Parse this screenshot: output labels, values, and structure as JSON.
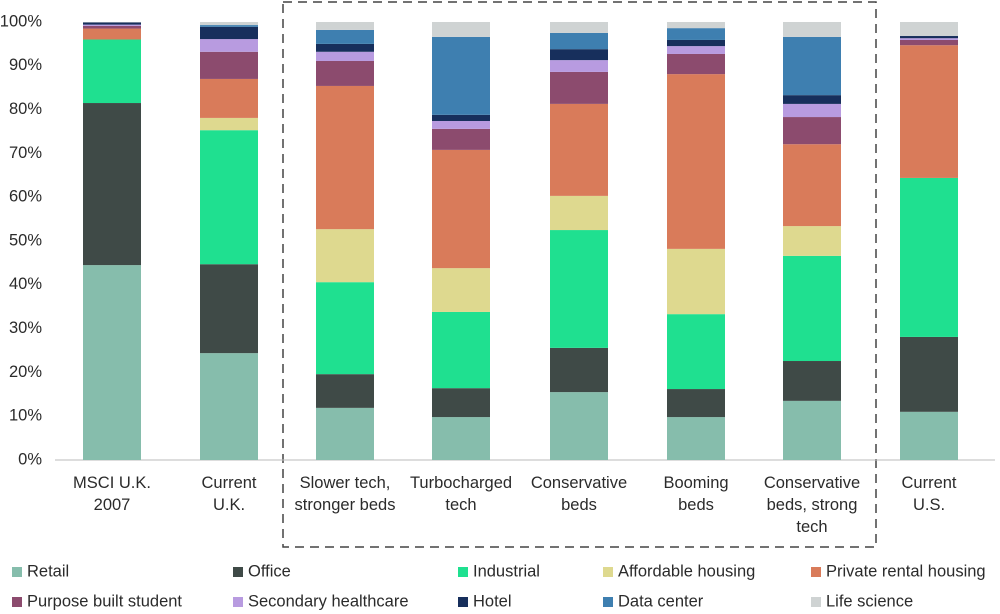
{
  "chart_data": {
    "type": "stacked_bar",
    "categories": [
      "MSCI U.K.\n2007",
      "Current\nU.K.",
      "Slower tech,\nstronger beds",
      "Turbocharged\ntech",
      "Conservative\nbeds",
      "Booming\nbeds",
      "Conservative\nbeds, strong\ntech",
      "Current\nU.S."
    ],
    "series": [
      {
        "name": "Retail",
        "color": "#86bdac",
        "values": [
          44.5,
          24.4,
          11.9,
          9.8,
          15.5,
          9.8,
          13.5,
          11.0
        ]
      },
      {
        "name": "Office",
        "color": "#3f4a47",
        "values": [
          37.0,
          20.3,
          7.7,
          6.6,
          10.1,
          6.4,
          9.1,
          17.1
        ]
      },
      {
        "name": "Industrial",
        "color": "#1fe090",
        "values": [
          14.5,
          30.6,
          21.0,
          17.4,
          26.9,
          17.1,
          24.0,
          36.3
        ]
      },
      {
        "name": "Affordable housing",
        "color": "#ded98f",
        "values": [
          0,
          2.8,
          12.1,
          10.0,
          7.8,
          14.9,
          6.8,
          0
        ]
      },
      {
        "name": "Private rental housing",
        "color": "#d97b5a",
        "values": [
          2.5,
          8.9,
          32.7,
          27.0,
          21.0,
          39.9,
          18.7,
          30.3
        ]
      },
      {
        "name": "Purpose built student",
        "color": "#8c4b6e",
        "values": [
          0.6,
          6.2,
          5.7,
          4.8,
          7.3,
          4.6,
          6.2,
          1.2
        ]
      },
      {
        "name": "Secondary healthcare",
        "color": "#b89be0",
        "values": [
          0.3,
          2.9,
          2.1,
          1.8,
          2.7,
          1.8,
          3.0,
          0.4
        ]
      },
      {
        "name": "Hotel",
        "color": "#172f5c",
        "values": [
          0.5,
          2.8,
          1.8,
          1.4,
          2.5,
          1.4,
          2.0,
          0.5
        ]
      },
      {
        "name": "Data center",
        "color": "#3e7fb0",
        "values": [
          0,
          0.4,
          3.2,
          17.8,
          3.7,
          2.7,
          13.3,
          0
        ]
      },
      {
        "name": "Life science",
        "color": "#cfd3d3",
        "values": [
          0.1,
          0.7,
          1.8,
          3.4,
          2.5,
          1.4,
          3.4,
          3.2
        ]
      }
    ],
    "ylim": [
      0,
      100
    ],
    "yticks": [
      {
        "value": 0,
        "label": "0%"
      },
      {
        "value": 10,
        "label": "10%"
      },
      {
        "value": 20,
        "label": "20%"
      },
      {
        "value": 30,
        "label": "30%"
      },
      {
        "value": 40,
        "label": "40%"
      },
      {
        "value": 50,
        "label": "50%"
      },
      {
        "value": 60,
        "label": "60%"
      },
      {
        "value": 70,
        "label": "70%"
      },
      {
        "value": 80,
        "label": "80%"
      },
      {
        "value": 90,
        "label": "90%"
      },
      {
        "value": 100,
        "label": "100%"
      }
    ],
    "grid": false,
    "legend": "bottom"
  }
}
